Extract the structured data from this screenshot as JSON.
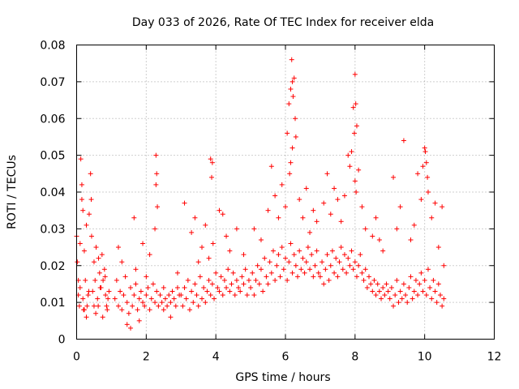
{
  "chart_data": {
    "type": "scatter",
    "title": "Day 033 of 2026, Rate Of TEC Index for receiver elda",
    "xlabel": "GPS time / hours",
    "ylabel": "ROTI / TECUs",
    "xlim": [
      0,
      12
    ],
    "ylim": [
      0,
      0.08
    ],
    "xticks": [
      "0",
      "2",
      "4",
      "6",
      "8",
      "10",
      "12"
    ],
    "yticks": [
      "0",
      "0.01",
      "0.02",
      "0.03",
      "0.04",
      "0.05",
      "0.06",
      "0.07",
      "0.08"
    ],
    "grid": true,
    "marker": "plus",
    "color": "#ff0000",
    "series": [
      {
        "name": "ROTI",
        "x": [
          0.0,
          0.02,
          0.05,
          0.08,
          0.1,
          0.12,
          0.15,
          0.18,
          0.2,
          0.22,
          0.25,
          0.28,
          0.3,
          0.33,
          0.36,
          0.4,
          0.43,
          0.46,
          0.5,
          0.53,
          0.56,
          0.6,
          0.63,
          0.66,
          0.7,
          0.73,
          0.76,
          0.8,
          0.83,
          0.86,
          0.9,
          0.93,
          0.05,
          0.1,
          0.15,
          0.18,
          0.22,
          0.28,
          0.35,
          0.42,
          0.5,
          0.55,
          0.62,
          0.68,
          0.75,
          0.82,
          0.88,
          1.1,
          1.15,
          1.2,
          1.25,
          1.3,
          1.35,
          1.4,
          1.45,
          1.5,
          1.55,
          1.6,
          1.65,
          1.7,
          1.75,
          1.8,
          1.85,
          1.9,
          1.95,
          2.0,
          2.05,
          2.1,
          2.15,
          2.2,
          2.25,
          2.3,
          2.35,
          2.4,
          2.45,
          2.5,
          2.55,
          2.6,
          2.65,
          2.7,
          2.75,
          2.8,
          2.85,
          2.9,
          2.95,
          1.2,
          1.3,
          1.45,
          1.55,
          1.65,
          1.7,
          1.8,
          1.9,
          2.0,
          2.1,
          2.28,
          2.3,
          2.32,
          2.25,
          2.28,
          2.5,
          2.7,
          2.9,
          3.0,
          3.05,
          3.1,
          3.15,
          3.2,
          3.25,
          3.3,
          3.35,
          3.4,
          3.45,
          3.5,
          3.55,
          3.6,
          3.65,
          3.7,
          3.75,
          3.8,
          3.85,
          3.9,
          3.95,
          4.0,
          4.05,
          4.1,
          4.15,
          4.2,
          4.25,
          4.3,
          4.35,
          4.4,
          4.45,
          4.5,
          4.55,
          4.6,
          4.65,
          4.7,
          4.75,
          4.8,
          4.85,
          4.9,
          4.95,
          3.1,
          3.3,
          3.4,
          3.5,
          3.6,
          3.7,
          3.8,
          3.85,
          3.9,
          3.88,
          3.92,
          4.1,
          4.2,
          4.3,
          4.4,
          4.6,
          4.8,
          5.0,
          5.05,
          5.1,
          5.15,
          5.2,
          5.25,
          5.3,
          5.35,
          5.4,
          5.45,
          5.5,
          5.55,
          5.6,
          5.65,
          5.7,
          5.75,
          5.8,
          5.85,
          5.9,
          5.95,
          6.0,
          6.05,
          6.1,
          6.15,
          6.2,
          6.25,
          6.3,
          6.35,
          6.4,
          6.45,
          6.5,
          6.55,
          6.6,
          6.65,
          6.7,
          6.75,
          6.8,
          6.85,
          6.9,
          6.95,
          5.1,
          5.3,
          5.5,
          5.6,
          5.7,
          5.8,
          5.9,
          6.0,
          6.05,
          6.1,
          6.15,
          6.18,
          6.2,
          6.22,
          6.25,
          6.28,
          6.3,
          6.12,
          6.15,
          6.2,
          6.4,
          6.5,
          6.6,
          6.7,
          6.8,
          6.9,
          7.0,
          7.05,
          7.1,
          7.15,
          7.2,
          7.25,
          7.3,
          7.35,
          7.4,
          7.45,
          7.5,
          7.55,
          7.6,
          7.65,
          7.7,
          7.75,
          7.8,
          7.85,
          7.9,
          7.95,
          8.0,
          8.05,
          8.1,
          8.15,
          8.2,
          8.25,
          8.3,
          8.35,
          8.4,
          8.45,
          8.5,
          8.55,
          8.6,
          8.65,
          8.7,
          8.75,
          8.8,
          8.85,
          8.9,
          8.95,
          7.1,
          7.2,
          7.3,
          7.4,
          7.5,
          7.6,
          7.7,
          7.8,
          7.85,
          7.9,
          7.95,
          8.0,
          8.02,
          8.05,
          7.98,
          8.0,
          8.03,
          8.1,
          8.2,
          8.3,
          8.5,
          8.6,
          8.7,
          8.8,
          9.0,
          9.05,
          9.1,
          9.15,
          9.2,
          9.25,
          9.3,
          9.35,
          9.4,
          9.45,
          9.5,
          9.55,
          9.6,
          9.65,
          9.7,
          9.75,
          9.8,
          9.85,
          9.9,
          9.95,
          10.0,
          10.05,
          10.1,
          10.15,
          10.2,
          10.25,
          10.3,
          10.35,
          10.4,
          10.45,
          10.5,
          10.55,
          9.1,
          9.2,
          9.3,
          9.4,
          9.6,
          9.7,
          9.8,
          9.9,
          9.95,
          10.0,
          10.02,
          10.05,
          10.08,
          10.1,
          10.2,
          10.3,
          10.4,
          10.5,
          10.55
        ],
        "y": [
          0.028,
          0.021,
          0.012,
          0.009,
          0.014,
          0.049,
          0.038,
          0.011,
          0.008,
          0.024,
          0.016,
          0.031,
          0.009,
          0.012,
          0.034,
          0.045,
          0.028,
          0.013,
          0.009,
          0.016,
          0.025,
          0.011,
          0.022,
          0.018,
          0.014,
          0.023,
          0.016,
          0.019,
          0.012,
          0.009,
          0.011,
          0.013,
          0.016,
          0.026,
          0.042,
          0.035,
          0.008,
          0.006,
          0.013,
          0.038,
          0.021,
          0.007,
          0.009,
          0.014,
          0.006,
          0.017,
          0.008,
          0.011,
          0.016,
          0.009,
          0.013,
          0.008,
          0.012,
          0.017,
          0.01,
          0.007,
          0.014,
          0.009,
          0.012,
          0.015,
          0.008,
          0.011,
          0.013,
          0.01,
          0.009,
          0.012,
          0.014,
          0.008,
          0.011,
          0.015,
          0.01,
          0.013,
          0.009,
          0.012,
          0.01,
          0.014,
          0.011,
          0.009,
          0.012,
          0.01,
          0.013,
          0.011,
          0.009,
          0.014,
          0.012,
          0.025,
          0.021,
          0.004,
          0.003,
          0.033,
          0.019,
          0.005,
          0.026,
          0.017,
          0.023,
          0.05,
          0.045,
          0.036,
          0.03,
          0.042,
          0.008,
          0.006,
          0.018,
          0.012,
          0.009,
          0.014,
          0.011,
          0.016,
          0.008,
          0.013,
          0.01,
          0.015,
          0.012,
          0.009,
          0.017,
          0.011,
          0.014,
          0.01,
          0.013,
          0.016,
          0.012,
          0.015,
          0.011,
          0.018,
          0.014,
          0.013,
          0.017,
          0.012,
          0.016,
          0.014,
          0.019,
          0.013,
          0.015,
          0.018,
          0.012,
          0.016,
          0.014,
          0.013,
          0.017,
          0.015,
          0.019,
          0.012,
          0.016,
          0.037,
          0.029,
          0.033,
          0.021,
          0.025,
          0.031,
          0.022,
          0.049,
          0.048,
          0.044,
          0.026,
          0.035,
          0.034,
          0.028,
          0.024,
          0.03,
          0.023,
          0.014,
          0.018,
          0.012,
          0.016,
          0.02,
          0.015,
          0.019,
          0.013,
          0.022,
          0.017,
          0.015,
          0.021,
          0.018,
          0.024,
          0.016,
          0.02,
          0.023,
          0.017,
          0.025,
          0.019,
          0.022,
          0.016,
          0.021,
          0.026,
          0.018,
          0.023,
          0.02,
          0.017,
          0.024,
          0.019,
          0.022,
          0.018,
          0.021,
          0.025,
          0.019,
          0.023,
          0.017,
          0.02,
          0.024,
          0.018,
          0.03,
          0.027,
          0.035,
          0.047,
          0.039,
          0.033,
          0.042,
          0.036,
          0.056,
          0.064,
          0.068,
          0.076,
          0.07,
          0.066,
          0.071,
          0.06,
          0.055,
          0.045,
          0.048,
          0.052,
          0.038,
          0.033,
          0.041,
          0.029,
          0.035,
          0.032,
          0.017,
          0.021,
          0.015,
          0.019,
          0.023,
          0.016,
          0.02,
          0.024,
          0.018,
          0.022,
          0.017,
          0.021,
          0.025,
          0.019,
          0.023,
          0.018,
          0.022,
          0.02,
          0.024,
          0.019,
          0.021,
          0.017,
          0.02,
          0.023,
          0.018,
          0.016,
          0.019,
          0.014,
          0.017,
          0.015,
          0.013,
          0.016,
          0.012,
          0.015,
          0.013,
          0.011,
          0.014,
          0.012,
          0.015,
          0.013,
          0.037,
          0.045,
          0.034,
          0.041,
          0.038,
          0.032,
          0.039,
          0.05,
          0.047,
          0.051,
          0.063,
          0.072,
          0.064,
          0.058,
          0.056,
          0.043,
          0.04,
          0.046,
          0.036,
          0.03,
          0.028,
          0.033,
          0.027,
          0.024,
          0.011,
          0.014,
          0.009,
          0.012,
          0.016,
          0.01,
          0.013,
          0.011,
          0.015,
          0.012,
          0.01,
          0.014,
          0.017,
          0.011,
          0.013,
          0.016,
          0.012,
          0.015,
          0.018,
          0.013,
          0.016,
          0.012,
          0.019,
          0.014,
          0.011,
          0.016,
          0.013,
          0.01,
          0.015,
          0.012,
          0.009,
          0.011,
          0.044,
          0.03,
          0.036,
          0.054,
          0.027,
          0.031,
          0.045,
          0.038,
          0.047,
          0.052,
          0.051,
          0.048,
          0.044,
          0.04,
          0.033,
          0.037,
          0.025,
          0.036,
          0.02
        ]
      }
    ]
  }
}
